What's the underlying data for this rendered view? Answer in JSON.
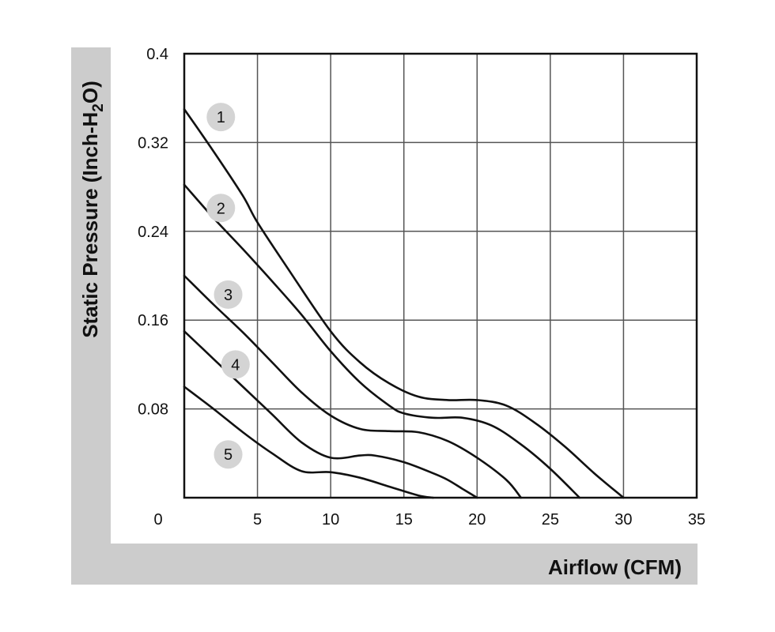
{
  "chart_data": {
    "type": "line",
    "xlabel": "Airflow (CFM)",
    "ylabel": "Static Pressure (Inch-H2O)",
    "xlim": [
      0,
      35
    ],
    "ylim": [
      0,
      0.4
    ],
    "x_ticks": [
      0,
      5,
      10,
      15,
      20,
      25,
      30,
      35
    ],
    "x_tick_labels": [
      "0",
      "5",
      "10",
      "15",
      "20",
      "25",
      "30",
      "35"
    ],
    "y_ticks": [
      0.08,
      0.16,
      0.24,
      0.32,
      0.4
    ],
    "y_tick_labels": [
      "0.08",
      "0.16",
      "0.24",
      "0.32",
      "0.4"
    ],
    "grid": true,
    "legend": "numbered circle markers beside each curve",
    "colors": {
      "line": "#111111",
      "grid": "#555555",
      "badge": "#d4d4d4",
      "frame": "#cccccc"
    },
    "series": [
      {
        "label": "1",
        "label_at": [
          2.5,
          0.343
        ],
        "points": [
          [
            0,
            0.35
          ],
          [
            2,
            0.312
          ],
          [
            4,
            0.272
          ],
          [
            5,
            0.248
          ],
          [
            7,
            0.208
          ],
          [
            10,
            0.15
          ],
          [
            12,
            0.122
          ],
          [
            14,
            0.103
          ],
          [
            16,
            0.091
          ],
          [
            18,
            0.088
          ],
          [
            20,
            0.088
          ],
          [
            22,
            0.083
          ],
          [
            24,
            0.067
          ],
          [
            26,
            0.046
          ],
          [
            28,
            0.022
          ],
          [
            30,
            0.0
          ]
        ]
      },
      {
        "label": "2",
        "label_at": [
          2.5,
          0.261
        ],
        "points": [
          [
            0,
            0.282
          ],
          [
            2,
            0.252
          ],
          [
            4,
            0.224
          ],
          [
            6,
            0.195
          ],
          [
            8,
            0.165
          ],
          [
            10,
            0.132
          ],
          [
            12,
            0.104
          ],
          [
            14,
            0.083
          ],
          [
            15,
            0.076
          ],
          [
            17,
            0.072
          ],
          [
            19,
            0.072
          ],
          [
            21,
            0.065
          ],
          [
            23,
            0.048
          ],
          [
            25,
            0.026
          ],
          [
            27,
            0.0
          ]
        ]
      },
      {
        "label": "3",
        "label_at": [
          3.0,
          0.183
        ],
        "points": [
          [
            0,
            0.2
          ],
          [
            2,
            0.174
          ],
          [
            4,
            0.149
          ],
          [
            6,
            0.122
          ],
          [
            8,
            0.095
          ],
          [
            10,
            0.074
          ],
          [
            12,
            0.062
          ],
          [
            14,
            0.06
          ],
          [
            16,
            0.059
          ],
          [
            18,
            0.051
          ],
          [
            20,
            0.036
          ],
          [
            22,
            0.016
          ],
          [
            23,
            0.0
          ]
        ]
      },
      {
        "label": "4",
        "label_at": [
          3.5,
          0.12
        ],
        "points": [
          [
            0,
            0.15
          ],
          [
            2,
            0.125
          ],
          [
            4,
            0.1
          ],
          [
            6,
            0.075
          ],
          [
            8,
            0.05
          ],
          [
            10,
            0.036
          ],
          [
            12,
            0.038
          ],
          [
            13,
            0.038
          ],
          [
            15,
            0.032
          ],
          [
            17,
            0.022
          ],
          [
            18,
            0.016
          ],
          [
            19,
            0.008
          ],
          [
            20,
            0.0
          ]
        ]
      },
      {
        "label": "5",
        "label_at": [
          3.0,
          0.039
        ],
        "points": [
          [
            0,
            0.1
          ],
          [
            2,
            0.08
          ],
          [
            4,
            0.059
          ],
          [
            6,
            0.04
          ],
          [
            8,
            0.024
          ],
          [
            10,
            0.023
          ],
          [
            12,
            0.018
          ],
          [
            14,
            0.01
          ],
          [
            16,
            0.002
          ],
          [
            17,
            0.0
          ]
        ]
      }
    ]
  }
}
